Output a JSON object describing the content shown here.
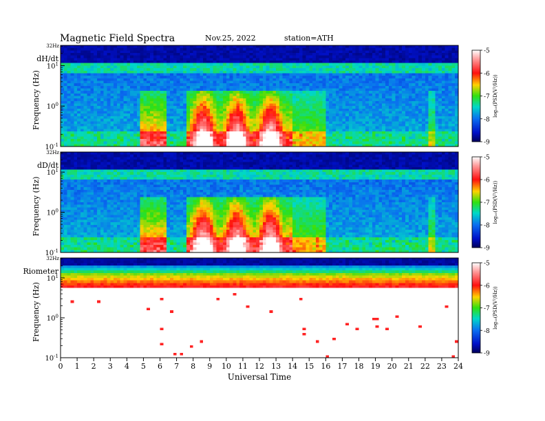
{
  "header": {
    "title": "Magnetic  Field  Spectra",
    "date": "Nov.25, 2022",
    "station": "station=ATH"
  },
  "colors": {
    "bg": "#ffffff",
    "frame": "#000000",
    "spectral_dark": "#000a5a",
    "spectral_blue": "#0a46e6",
    "spectral_cyan": "#00d2e6",
    "spectral_green": "#00e64b",
    "spectral_red": "#ff1e1e"
  },
  "chart_data": {
    "type": "heatmap",
    "xlabel": "Universal Time",
    "x_ticks": [
      "0",
      "1",
      "2",
      "3",
      "4",
      "5",
      "6",
      "7",
      "8",
      "9",
      "10",
      "11",
      "12",
      "13",
      "14",
      "15",
      "16",
      "17",
      "18",
      "19",
      "20",
      "21",
      "22",
      "23",
      "24"
    ],
    "xlim": [
      0,
      24
    ],
    "colorbar": {
      "label": "log₁₀(PSD(V²/Hz))",
      "ticks": [
        "-5",
        "-6",
        "-7",
        "-8",
        "-9"
      ],
      "range": [
        -9,
        -5
      ]
    },
    "panels": [
      {
        "name": "dH/dt",
        "ylabel": "Frequency  (Hz)",
        "top_label": "32Hz",
        "y_ticks": [
          {
            "base": "10",
            "exp": "1"
          },
          {
            "base": "10",
            "exp": "0"
          },
          {
            "base": "10",
            "exp": "-1"
          }
        ],
        "ylim_log10": [
          -1,
          1.5
        ]
      },
      {
        "name": "dD/dt",
        "ylabel": "Frequency  (Hz)",
        "top_label": "32Hz",
        "y_ticks": [
          {
            "base": "10",
            "exp": "1"
          },
          {
            "base": "10",
            "exp": "0"
          },
          {
            "base": "10",
            "exp": "-1"
          }
        ],
        "ylim_log10": [
          -1,
          1.5
        ]
      },
      {
        "name": "Riometer",
        "ylabel": "Frequency  (Hz)",
        "top_label": "32Hz",
        "y_ticks": [
          {
            "base": "10",
            "exp": "1"
          },
          {
            "base": "10",
            "exp": "0"
          },
          {
            "base": "10",
            "exp": "-1"
          }
        ],
        "ylim_log10": [
          -1,
          1.5
        ]
      }
    ]
  }
}
